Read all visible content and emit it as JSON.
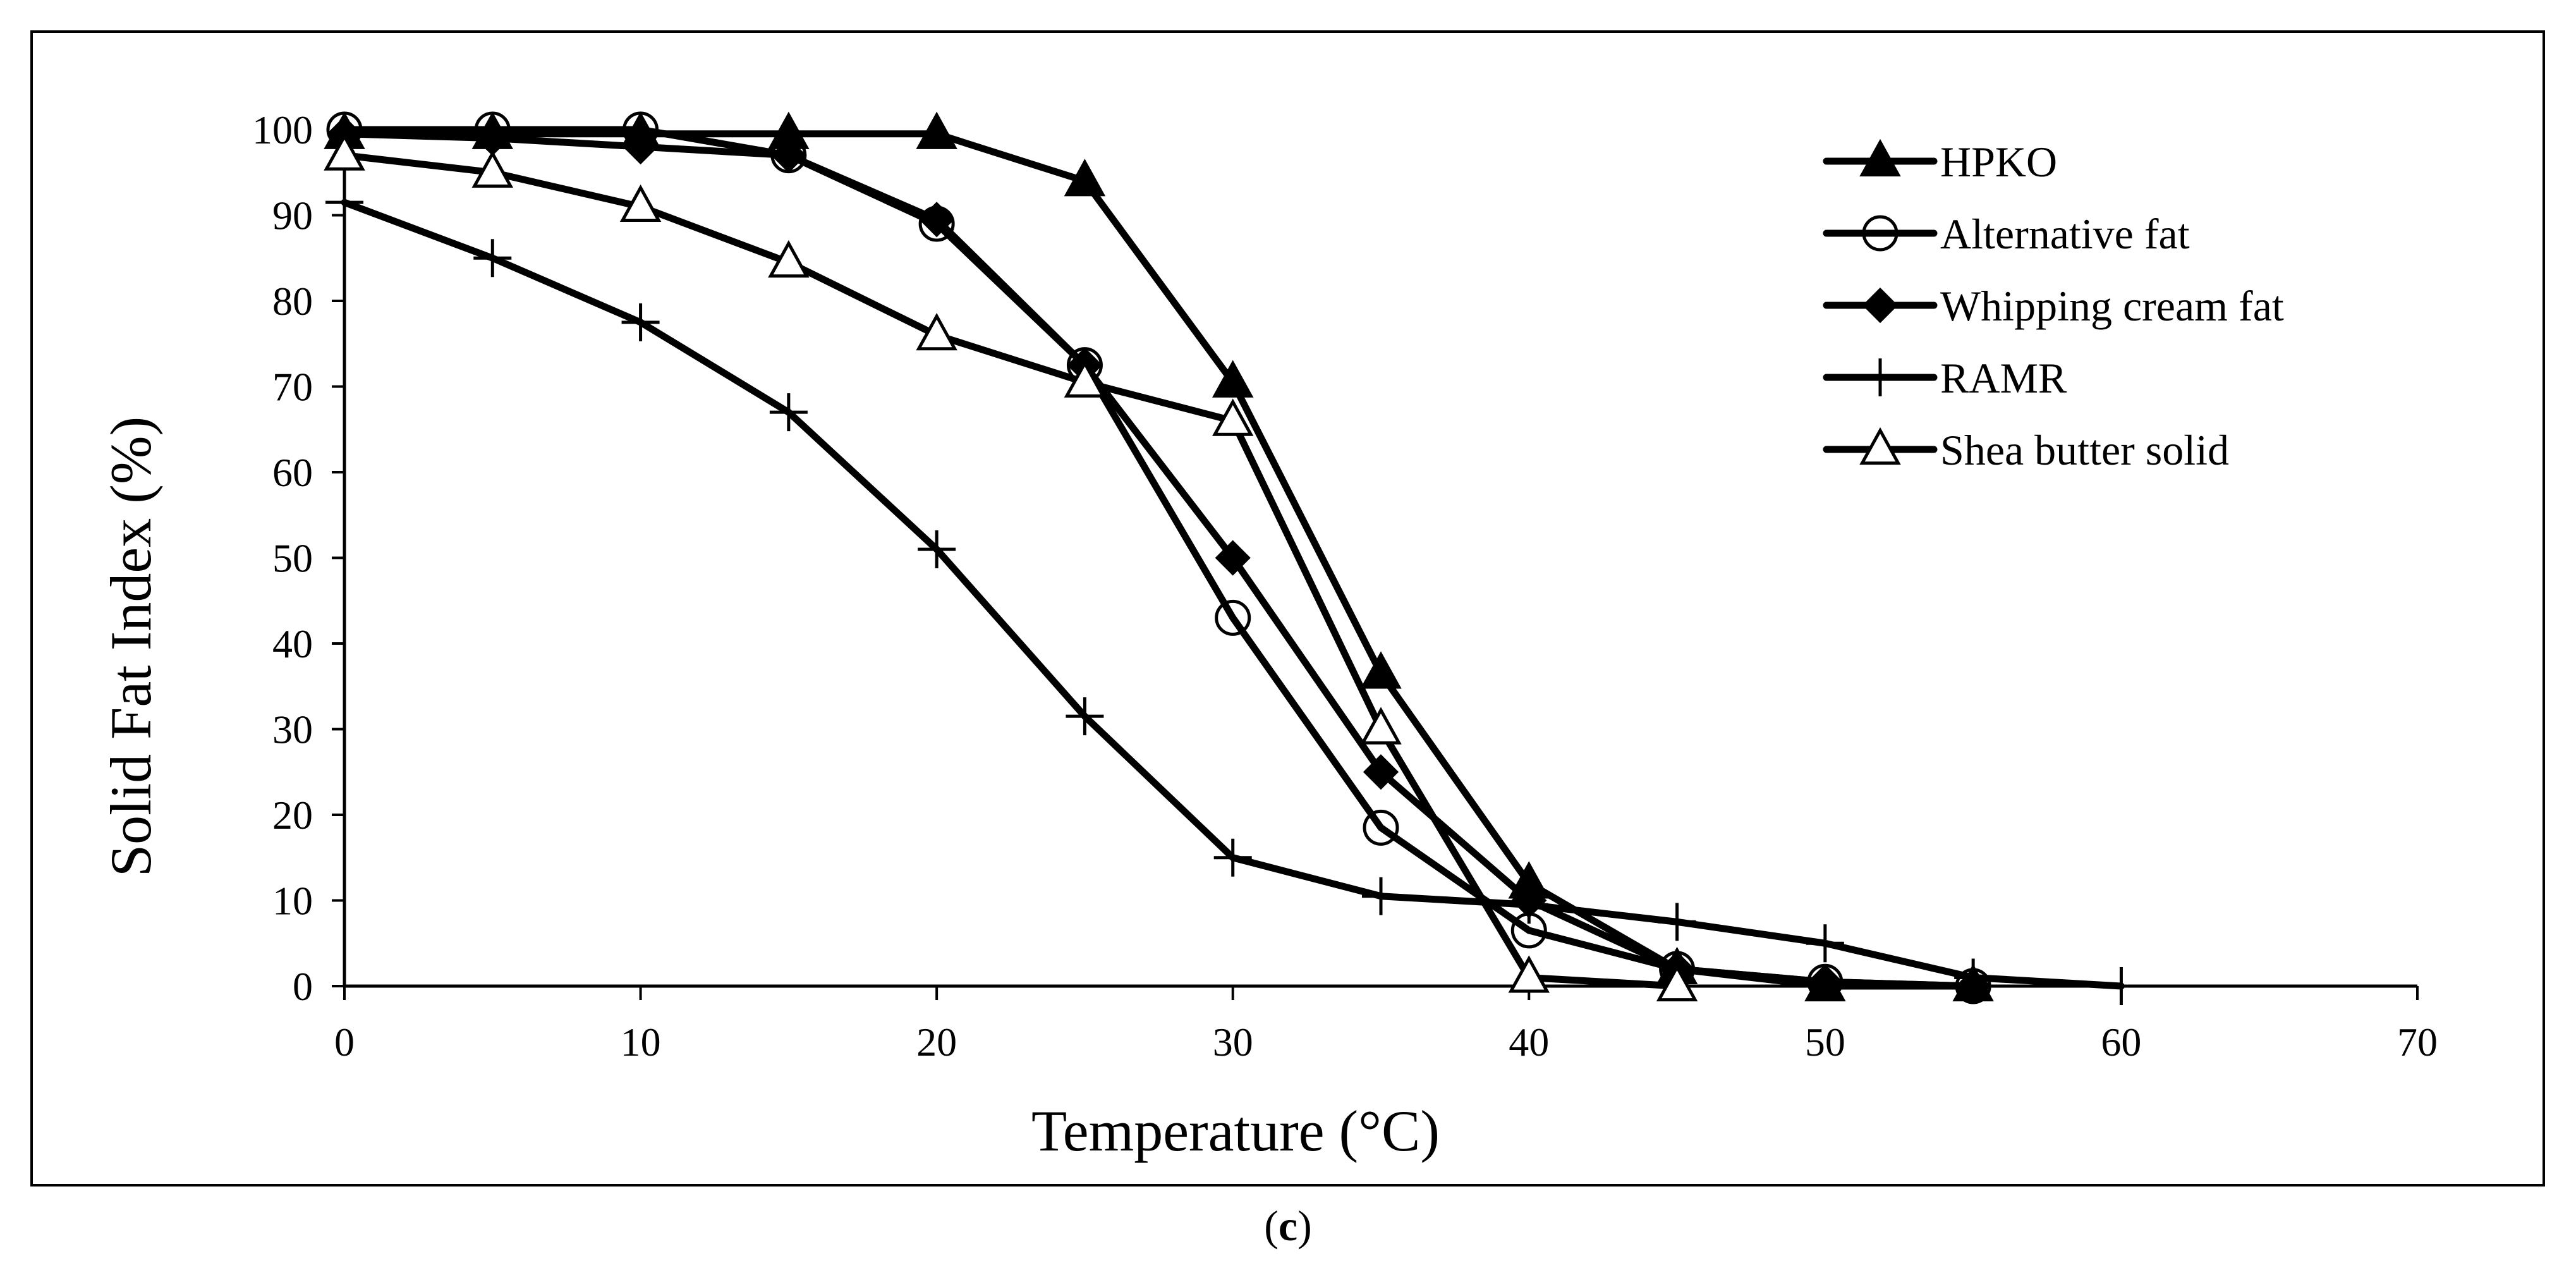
{
  "caption": {
    "open": "(",
    "letter": "c",
    "close": ")"
  },
  "chart_data": {
    "type": "line",
    "title": "",
    "xlabel": "Temperature (°C)",
    "ylabel": "Solid Fat Index (%)",
    "xlim": [
      0,
      70
    ],
    "ylim": [
      0,
      100
    ],
    "xticks": [
      0,
      10,
      20,
      30,
      40,
      50,
      60,
      70
    ],
    "yticks": [
      0,
      10,
      20,
      30,
      40,
      50,
      60,
      70,
      80,
      90,
      100
    ],
    "grid": false,
    "legend_position": "top-right",
    "series": [
      {
        "name": "HPKO",
        "marker": "filled-triangle",
        "x": [
          0,
          5,
          10,
          15,
          20,
          25,
          30,
          35,
          40,
          45,
          50,
          55
        ],
        "y": [
          99.5,
          99.5,
          99.5,
          99.5,
          99.5,
          94,
          70.5,
          36.5,
          12,
          2,
          0,
          0
        ]
      },
      {
        "name": "Alternative fat",
        "marker": "open-circle",
        "x": [
          0,
          5,
          10,
          15,
          20,
          25,
          30,
          35,
          40,
          45,
          50,
          55
        ],
        "y": [
          100,
          100,
          100,
          97,
          89,
          72.5,
          43,
          18.5,
          6.5,
          2,
          0.5,
          0
        ]
      },
      {
        "name": "Whipping cream fat",
        "marker": "filled-diamond",
        "x": [
          0,
          5,
          10,
          15,
          20,
          25,
          30,
          35,
          40,
          45,
          50,
          55
        ],
        "y": [
          99.5,
          99,
          98,
          97,
          89.5,
          72.5,
          50,
          25,
          10,
          2,
          0.5,
          0
        ]
      },
      {
        "name": "RAMR",
        "marker": "plus",
        "x": [
          0,
          5,
          10,
          15,
          20,
          25,
          30,
          35,
          40,
          45,
          50,
          55,
          60
        ],
        "y": [
          91.5,
          85,
          77.5,
          67,
          51,
          31.5,
          15,
          10.5,
          9.5,
          7.5,
          5,
          1,
          0
        ]
      },
      {
        "name": "Shea butter solid",
        "marker": "open-triangle",
        "x": [
          0,
          5,
          10,
          15,
          20,
          25,
          30,
          35,
          40,
          45
        ],
        "y": [
          97,
          95,
          91,
          84.5,
          76,
          70.5,
          66,
          30,
          1,
          0
        ]
      }
    ]
  }
}
